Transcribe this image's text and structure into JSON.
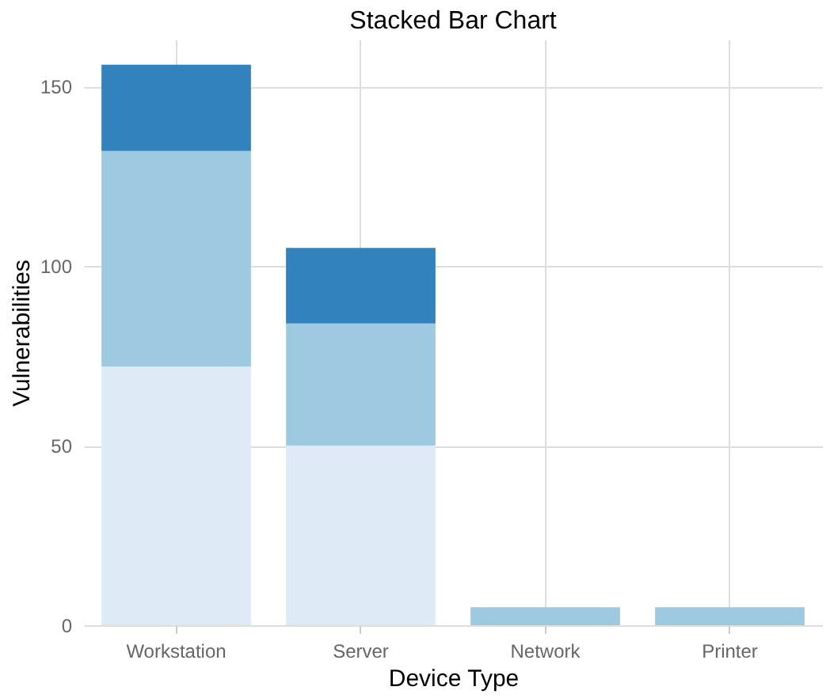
{
  "chart_data": {
    "type": "bar",
    "title": "Stacked Bar Chart",
    "xlabel": "Device Type",
    "ylabel": "Vulnerabilities",
    "categories": [
      "Workstation",
      "Server",
      "Network",
      "Printer"
    ],
    "stacked": true,
    "series": [
      {
        "color": "#deebf7",
        "values": [
          72,
          50,
          0,
          0
        ]
      },
      {
        "color": "#9ecae1",
        "values": [
          60,
          34,
          5,
          5
        ]
      },
      {
        "color": "#3182bd",
        "values": [
          24,
          21,
          0,
          0
        ]
      }
    ],
    "ylim": [
      0,
      163
    ],
    "yticks": [
      0,
      50,
      100,
      150
    ],
    "grid": true
  }
}
